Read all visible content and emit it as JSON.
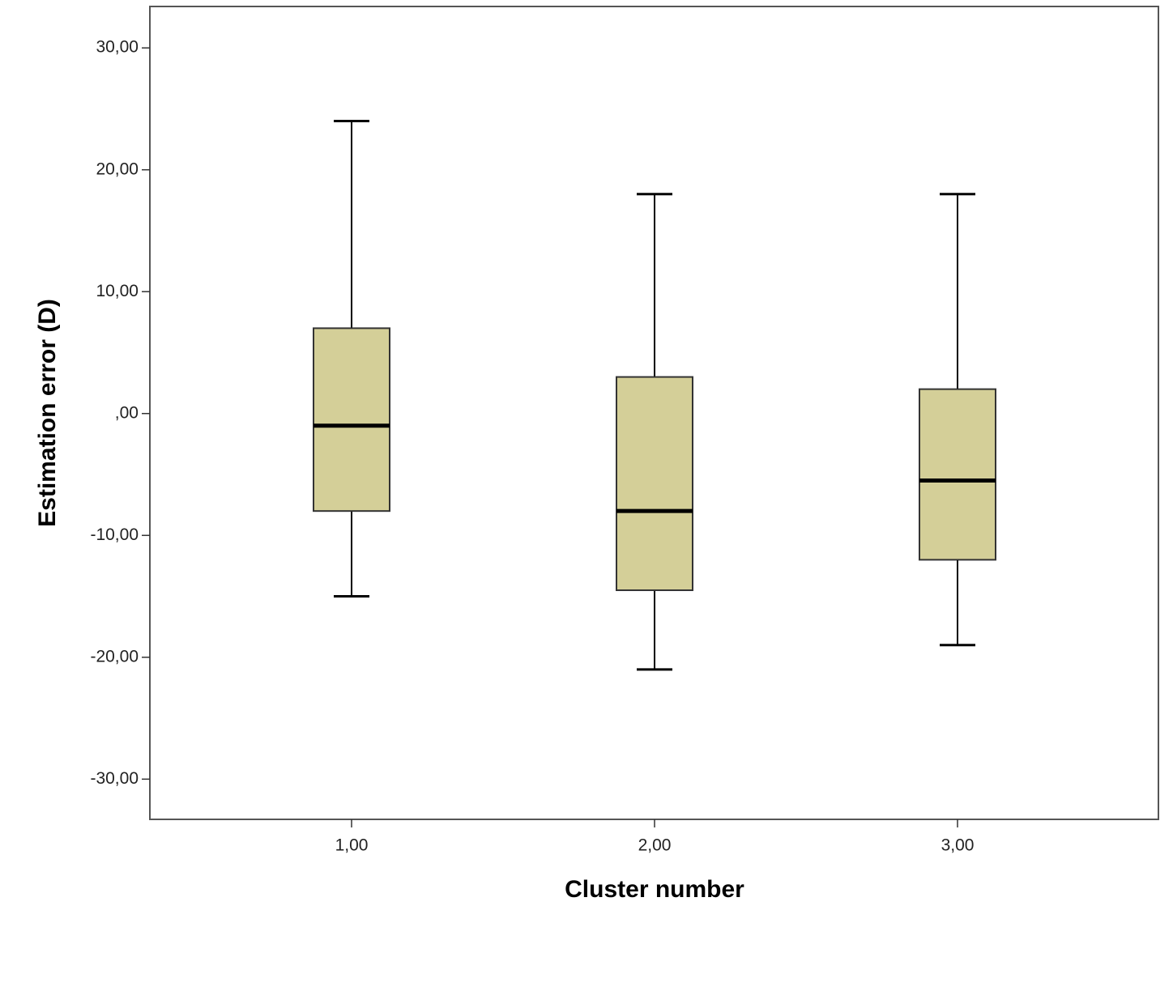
{
  "chart_data": {
    "type": "box",
    "x_label": "Cluster number",
    "y_label": "Estimation error (D)",
    "categories": [
      "1,00",
      "2,00",
      "3,00"
    ],
    "whisker_low": [
      -15,
      -21,
      -19
    ],
    "q1": [
      -8,
      -14.5,
      -12
    ],
    "median": [
      -1,
      -8,
      -5.5
    ],
    "q3": [
      7,
      3,
      2
    ],
    "whisker_high": [
      24,
      18,
      18
    ],
    "color": "#d4cf98",
    "ylim": [
      -33.3,
      33.4
    ],
    "yticks": [
      {
        "value": -30,
        "label": "-30,00"
      },
      {
        "value": -20,
        "label": "-20,00"
      },
      {
        "value": -10,
        "label": "-10,00"
      },
      {
        "value": 0,
        "label": ",00"
      },
      {
        "value": 10,
        "label": "10,00"
      },
      {
        "value": 20,
        "label": "20,00"
      },
      {
        "value": 30,
        "label": "30,00"
      }
    ]
  }
}
